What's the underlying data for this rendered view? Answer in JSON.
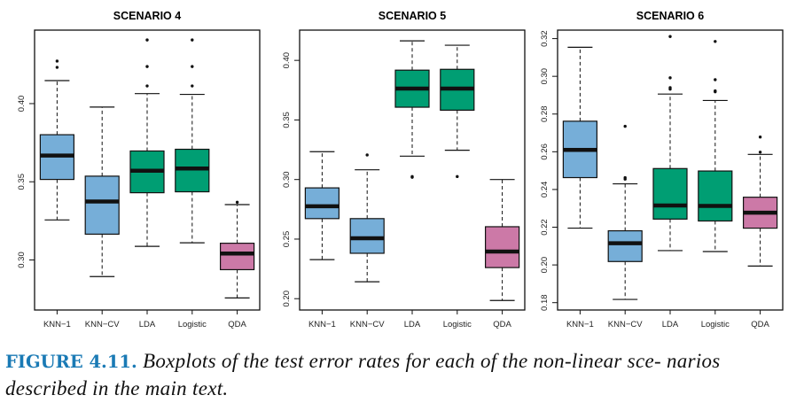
{
  "colors": {
    "knn": "#76aed8",
    "linear": "#009e73",
    "qda": "#cc79a7",
    "median": "#111111",
    "caption_label": "#1a7ab5"
  },
  "chart_data": [
    {
      "type": "box",
      "title": "SCENARIO 4",
      "xlabel": "",
      "ylabel": "",
      "ylim": [
        0.268,
        0.447
      ],
      "yticks": [
        0.3,
        0.35,
        0.4
      ],
      "ytick_labels": [
        "0.30",
        "0.35",
        "0.40"
      ],
      "categories": [
        "KNN−1",
        "KNN−CV",
        "LDA",
        "Logistic",
        "QDA"
      ],
      "series": [
        {
          "name": "KNN−1",
          "color_key": "knn",
          "whisker_low": 0.3256,
          "q1": 0.3515,
          "median": 0.3668,
          "q3": 0.3801,
          "whisker_high": 0.4147,
          "outliers": [
            0.4232,
            0.4272
          ]
        },
        {
          "name": "KNN−CV",
          "color_key": "knn",
          "whisker_low": 0.2894,
          "q1": 0.3165,
          "median": 0.3374,
          "q3": 0.3536,
          "whisker_high": 0.3978,
          "outliers": []
        },
        {
          "name": "LDA",
          "color_key": "linear",
          "whisker_low": 0.3087,
          "q1": 0.343,
          "median": 0.3571,
          "q3": 0.3697,
          "whisker_high": 0.4064,
          "outliers": [
            0.4113,
            0.4237,
            0.4407
          ]
        },
        {
          "name": "Logistic",
          "color_key": "linear",
          "whisker_low": 0.311,
          "q1": 0.3436,
          "median": 0.3585,
          "q3": 0.3708,
          "whisker_high": 0.4059,
          "outliers": [
            0.4113,
            0.4237,
            0.4407
          ]
        },
        {
          "name": "QDA",
          "color_key": "qda",
          "whisker_low": 0.2757,
          "q1": 0.2938,
          "median": 0.3041,
          "q3": 0.3107,
          "whisker_high": 0.3354,
          "outliers": [
            0.3369
          ]
        }
      ]
    },
    {
      "type": "box",
      "title": "SCENARIO 5",
      "xlabel": "",
      "ylabel": "",
      "ylim": [
        0.1905,
        0.4254
      ],
      "yticks": [
        0.2,
        0.25,
        0.3,
        0.35,
        0.4
      ],
      "ytick_labels": [
        "0.20",
        "0.25",
        "0.30",
        "0.35",
        "0.40"
      ],
      "categories": [
        "KNN−1",
        "KNN−CV",
        "LDA",
        "Logistic",
        "QDA"
      ],
      "series": [
        {
          "name": "KNN−1",
          "color_key": "knn",
          "whisker_low": 0.2328,
          "q1": 0.2672,
          "median": 0.2776,
          "q3": 0.293,
          "whisker_high": 0.3234,
          "outliers": []
        },
        {
          "name": "KNN−CV",
          "color_key": "knn",
          "whisker_low": 0.2142,
          "q1": 0.2381,
          "median": 0.2507,
          "q3": 0.2672,
          "whisker_high": 0.3082,
          "outliers": [
            0.3206
          ]
        },
        {
          "name": "LDA",
          "color_key": "linear",
          "whisker_low": 0.3196,
          "q1": 0.3607,
          "median": 0.3763,
          "q3": 0.3918,
          "whisker_high": 0.4164,
          "outliers": [
            0.3019,
            0.3025
          ]
        },
        {
          "name": "Logistic",
          "color_key": "linear",
          "whisker_low": 0.3246,
          "q1": 0.3582,
          "median": 0.3763,
          "q3": 0.3925,
          "whisker_high": 0.4127,
          "outliers": [
            0.3025
          ]
        },
        {
          "name": "QDA",
          "color_key": "qda",
          "whisker_low": 0.1985,
          "q1": 0.2261,
          "median": 0.2396,
          "q3": 0.2604,
          "whisker_high": 0.3,
          "outliers": []
        }
      ]
    },
    {
      "type": "box",
      "title": "SCENARIO 6",
      "xlabel": "",
      "ylabel": "",
      "ylim": [
        0.1761,
        0.3245
      ],
      "yticks": [
        0.18,
        0.2,
        0.22,
        0.24,
        0.26,
        0.28,
        0.3,
        0.32
      ],
      "ytick_labels": [
        "0.18",
        "0.20",
        "0.22",
        "0.24",
        "0.26",
        "0.28",
        "0.30",
        "0.32"
      ],
      "categories": [
        "KNN−1",
        "KNN−CV",
        "LDA",
        "Logistic",
        "QDA"
      ],
      "series": [
        {
          "name": "KNN−1",
          "color_key": "knn",
          "whisker_low": 0.2195,
          "q1": 0.2463,
          "median": 0.261,
          "q3": 0.2762,
          "whisker_high": 0.3154,
          "outliers": []
        },
        {
          "name": "KNN−CV",
          "color_key": "knn",
          "whisker_low": 0.1817,
          "q1": 0.2018,
          "median": 0.2115,
          "q3": 0.2181,
          "whisker_high": 0.243,
          "outliers": [
            0.2455,
            0.2463,
            0.2735
          ]
        },
        {
          "name": "LDA",
          "color_key": "linear",
          "whisker_low": 0.2076,
          "q1": 0.2243,
          "median": 0.2315,
          "q3": 0.2511,
          "whisker_high": 0.2906,
          "outliers": [
            0.2932,
            0.294,
            0.2992,
            0.3211
          ]
        },
        {
          "name": "Logistic",
          "color_key": "linear",
          "whisker_low": 0.2071,
          "q1": 0.2233,
          "median": 0.2313,
          "q3": 0.2498,
          "whisker_high": 0.2872,
          "outliers": [
            0.2918,
            0.2923,
            0.2982,
            0.3185
          ]
        },
        {
          "name": "QDA",
          "color_key": "qda",
          "whisker_low": 0.1994,
          "q1": 0.2195,
          "median": 0.2277,
          "q3": 0.2359,
          "whisker_high": 0.2586,
          "outliers": [
            0.2598,
            0.2678
          ]
        }
      ]
    }
  ],
  "caption": {
    "label": "FIGURE 4.11.",
    "text": "Boxplots of the test error rates for each of the non-linear sce- narios described in the main text."
  }
}
